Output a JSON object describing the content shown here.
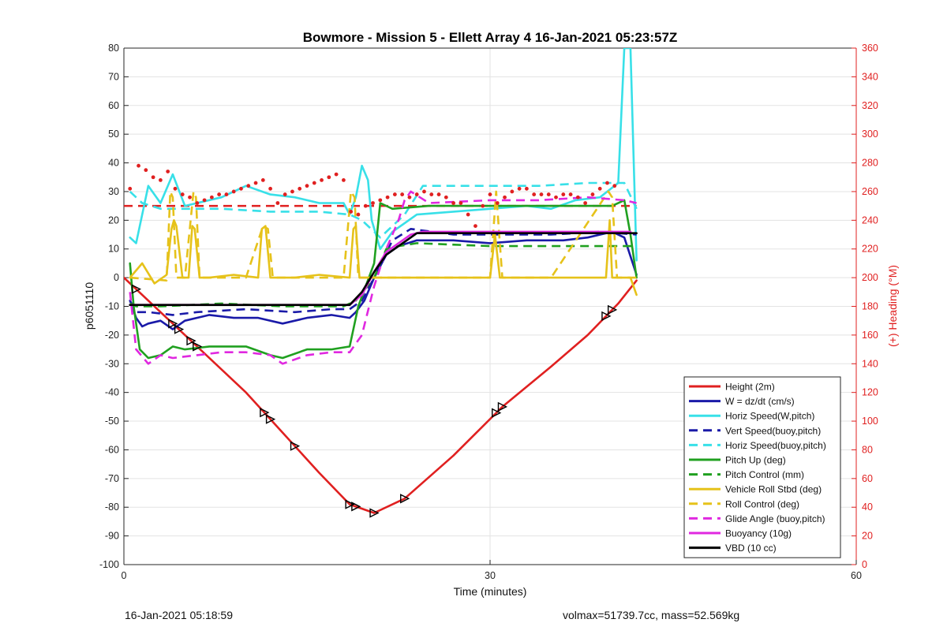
{
  "footer": {
    "left": "16-Jan-2021 05:18:59",
    "right": "volmax=51739.7cc, mass=52.569kg"
  },
  "chart_data": {
    "type": "line",
    "title": "Bowmore - Mission 5 - Ellett Array 4 16-Jan-2021 05:23:57Z",
    "xlabel": "Time (minutes)",
    "ylabel": "p6051110",
    "y2label": "(+) Heading (°M)",
    "xlim": [
      0,
      60
    ],
    "ylim": [
      -100,
      80
    ],
    "y2lim": [
      0,
      360
    ],
    "xticks": [
      0,
      30,
      60
    ],
    "yticks": [
      80,
      70,
      60,
      50,
      40,
      30,
      20,
      10,
      0,
      -10,
      -20,
      -30,
      -40,
      -50,
      -60,
      -70,
      -80,
      -90,
      -100
    ],
    "y2ticks": [
      360,
      340,
      320,
      300,
      280,
      260,
      240,
      220,
      200,
      180,
      160,
      140,
      120,
      100,
      80,
      60,
      40,
      20,
      0
    ],
    "grid": true,
    "legend_position": "bottom-right",
    "colors": {
      "red": "#e02020",
      "blue": "#1a1aa8",
      "cyan": "#38e0e8",
      "green": "#20a020",
      "yellow": "#e6c21a",
      "magenta": "#e028e0",
      "black": "#000000",
      "y2axis": "#e02020"
    },
    "series": [
      {
        "name": "Height (2m)",
        "color": "#e02020",
        "style": "solid",
        "x": [
          0,
          3,
          6,
          10,
          13,
          16,
          18.5,
          20.5,
          23,
          27,
          31,
          35,
          38,
          40.5,
          42
        ],
        "y": [
          0,
          -12,
          -24,
          -40,
          -54,
          -68,
          -79,
          -82,
          -77,
          -62,
          -45,
          -31,
          -20,
          -9,
          -1
        ]
      },
      {
        "name": "W = dz/dt (cm/s)",
        "color": "#1a1aa8",
        "style": "solid",
        "x": [
          0.5,
          1,
          1.5,
          2,
          3,
          4,
          5,
          7,
          9,
          11,
          13,
          15,
          17,
          18.5,
          19,
          19.7,
          20.5,
          21.5,
          22.5,
          24,
          27,
          30,
          33,
          36,
          38,
          40,
          41,
          42
        ],
        "y": [
          -8,
          -14,
          -17,
          -16,
          -15,
          -18,
          -15,
          -13,
          -14,
          -14,
          -16,
          -14,
          -13,
          -14,
          -12,
          -8,
          0,
          8,
          11,
          13,
          13,
          12,
          13,
          13,
          14,
          16,
          14,
          1
        ]
      },
      {
        "name": "Horiz Speed(W,pitch)",
        "color": "#38e0e8",
        "style": "solid",
        "x": [
          0.5,
          1,
          2,
          3,
          4,
          5,
          6,
          8,
          10,
          12,
          14,
          16,
          18,
          18.5,
          19,
          19.5,
          20,
          20.3,
          21,
          22,
          24,
          27,
          30,
          33,
          35,
          37,
          39,
          40.5,
          41,
          41.5,
          42
        ],
        "y": [
          14,
          12,
          32,
          26,
          36,
          25,
          26,
          28,
          32,
          29,
          28,
          26,
          26,
          22,
          28,
          39,
          34,
          20,
          10,
          16,
          22,
          23,
          24,
          25,
          24,
          27,
          28,
          33,
          80,
          80,
          6
        ]
      },
      {
        "name": "Vert Speed(buoy,pitch)",
        "color": "#1a1aa8",
        "style": "dashed",
        "x": [
          0.5,
          1,
          2,
          4,
          6,
          10,
          14,
          17,
          18.5,
          19.5,
          20.5,
          22,
          23.5,
          27,
          31,
          35,
          39,
          42
        ],
        "y": [
          -8,
          -12,
          -12,
          -13,
          -12,
          -11,
          -12,
          -11,
          -11,
          -8,
          0,
          13,
          17,
          15,
          15,
          15,
          16,
          15
        ]
      },
      {
        "name": "Horiz Speed(buoy,pitch)",
        "color": "#38e0e8",
        "style": "dashed",
        "x": [
          0.5,
          1.5,
          3,
          5,
          8,
          12,
          16,
          18.5,
          19.5,
          21,
          23,
          24.5,
          28,
          31,
          34,
          38,
          41,
          42
        ],
        "y": [
          30,
          26,
          24,
          24,
          24,
          23,
          23,
          22,
          20,
          14,
          22,
          32,
          32,
          32,
          32,
          33,
          33,
          24
        ]
      },
      {
        "name": "Pitch Up (deg)",
        "color": "#20a020",
        "style": "solid",
        "x": [
          0.5,
          0.8,
          1.3,
          2,
          3,
          4,
          5,
          7,
          10,
          12,
          13,
          15,
          17,
          18.5,
          19.2,
          20.5,
          21,
          22,
          25,
          28,
          31,
          34,
          37,
          40,
          41,
          41.5,
          42
        ],
        "y": [
          5,
          -10,
          -25,
          -28,
          -27,
          -24,
          -25,
          -24,
          -24,
          -27,
          -28,
          -25,
          -25,
          -24,
          -10,
          5,
          26,
          24,
          25,
          25,
          25,
          25,
          25,
          25,
          27,
          15,
          0
        ]
      },
      {
        "name": "Pitch Control (mm)",
        "color": "#20a020",
        "style": "dashed",
        "x": [
          0.5,
          1,
          3,
          8,
          13,
          18,
          19,
          20.5,
          21.5,
          22.5,
          24,
          30,
          36,
          41,
          42
        ],
        "y": [
          -9,
          -10,
          -10,
          -9,
          -10,
          -10,
          -8,
          0,
          10,
          11,
          12,
          11,
          11,
          11,
          11
        ]
      },
      {
        "name": "Vehicle Roll Stbd (deg)",
        "color": "#e6c21a",
        "style": "solid",
        "x": [
          0.5,
          1.5,
          2.5,
          3.5,
          3.9,
          4.1,
          4.3,
          4.8,
          5.3,
          5.6,
          5.8,
          6.2,
          7,
          9,
          11,
          11.3,
          11.6,
          12,
          12.3,
          14,
          16,
          18.5,
          18.8,
          19,
          19.3,
          19.6,
          20,
          22,
          25,
          28,
          30,
          30.4,
          30.8,
          32,
          35,
          38,
          39.5,
          39.8,
          40,
          40.5,
          41,
          41.5,
          42
        ],
        "y": [
          0,
          5,
          -2,
          1,
          17,
          20,
          18,
          0,
          0,
          18,
          17,
          0,
          0,
          1,
          0,
          17,
          18,
          0,
          0,
          0,
          1,
          0,
          17,
          18,
          0,
          0,
          0,
          0,
          0,
          0,
          0,
          15,
          0,
          0,
          0,
          0,
          0,
          20,
          0,
          0,
          0,
          0,
          -6
        ]
      },
      {
        "name": "Roll Control (deg)",
        "color": "#e6c21a",
        "style": "dashed",
        "x": [
          0.5,
          3.5,
          3.8,
          4,
          4.3,
          5,
          5.7,
          5.9,
          6.2,
          10,
          11.4,
          11.8,
          12.2,
          18,
          18.6,
          18.9,
          19.2,
          20,
          25,
          30,
          30.5,
          31,
          35,
          39.7,
          40,
          40.4,
          42
        ],
        "y": [
          0,
          -1,
          30,
          28,
          0,
          0,
          30,
          28,
          0,
          0,
          18,
          17,
          0,
          0,
          30,
          28,
          0,
          0,
          0,
          0,
          30,
          0,
          0,
          30,
          28,
          0,
          0
        ]
      },
      {
        "name": "Glide Angle (buoy,pitch)",
        "color": "#e028e0",
        "style": "dashed",
        "x": [
          0.5,
          1,
          2,
          3,
          4,
          6,
          8,
          10,
          12,
          13,
          15,
          17,
          18.5,
          19.5,
          20.5,
          21.5,
          22.5,
          23,
          23.5,
          25,
          30,
          34,
          38,
          41,
          42
        ],
        "y": [
          -5,
          -25,
          -30,
          -27,
          -28,
          -27,
          -26,
          -26,
          -27,
          -30,
          -27,
          -26,
          -26,
          -20,
          -3,
          10,
          20,
          27,
          30,
          26,
          27,
          27,
          28,
          27,
          26
        ]
      },
      {
        "name": "Buoyancy (10g)",
        "color": "#e028e0",
        "style": "solid",
        "x": [
          0.5,
          18.5,
          19.5,
          20.5,
          21.5,
          22.5,
          23.5,
          24.5,
          41.5
        ],
        "y": [
          -9.5,
          -9.5,
          -6,
          2,
          9,
          12,
          15,
          16,
          16
        ]
      },
      {
        "name": "VBD (10 cc)",
        "color": "#000000",
        "style": "solid",
        "x": [
          0.5,
          18.5,
          19.5,
          20.5,
          21.5,
          22.5,
          23.5,
          24,
          42
        ],
        "y": [
          -9.5,
          -9.5,
          -5,
          2,
          8,
          11,
          14,
          15.5,
          15.5
        ]
      }
    ],
    "heading_target": {
      "color": "#e02020",
      "style": "dashed",
      "x": [
        0,
        42
      ],
      "heading": [
        250,
        250
      ]
    },
    "heading_points": {
      "color": "#e02020",
      "axis": "right",
      "x": [
        0.5,
        1.2,
        1.8,
        2.4,
        3,
        3.6,
        4.2,
        4.8,
        5.4,
        6,
        6.6,
        7.2,
        7.8,
        8.4,
        9,
        9.6,
        10.2,
        10.8,
        11.4,
        12,
        12.6,
        13.2,
        13.8,
        14.4,
        15,
        15.6,
        16.2,
        16.8,
        17.4,
        18,
        18.6,
        19.2,
        19.8,
        20.4,
        21,
        21.6,
        22.2,
        22.8,
        23.4,
        24,
        24.6,
        25.2,
        25.8,
        26.4,
        27,
        27.6,
        28.2,
        28.8,
        29.4,
        30,
        30.6,
        31.2,
        31.8,
        32.4,
        33,
        33.6,
        34.2,
        34.8,
        35.4,
        36,
        36.6,
        37.2,
        37.8,
        38.4,
        39,
        39.6,
        40.2
      ],
      "heading": [
        262,
        278,
        275,
        270,
        268,
        274,
        262,
        258,
        256,
        252,
        254,
        256,
        258,
        258,
        260,
        262,
        264,
        266,
        268,
        262,
        252,
        258,
        260,
        262,
        264,
        266,
        268,
        270,
        272,
        268,
        246,
        244,
        250,
        252,
        254,
        256,
        258,
        258,
        256,
        258,
        260,
        258,
        258,
        256,
        252,
        252,
        244,
        236,
        250,
        258,
        252,
        256,
        260,
        262,
        262,
        258,
        258,
        258,
        256,
        258,
        258,
        256,
        252,
        258,
        262,
        266,
        264
      ]
    },
    "markers": {
      "shape": "triangle",
      "color": "#000000",
      "series": "Height (2m)",
      "x": [
        1,
        4,
        4.5,
        5.5,
        6,
        11.5,
        12,
        14,
        18.5,
        19,
        20.5,
        23,
        30.5,
        31,
        39.5,
        40
      ]
    }
  }
}
